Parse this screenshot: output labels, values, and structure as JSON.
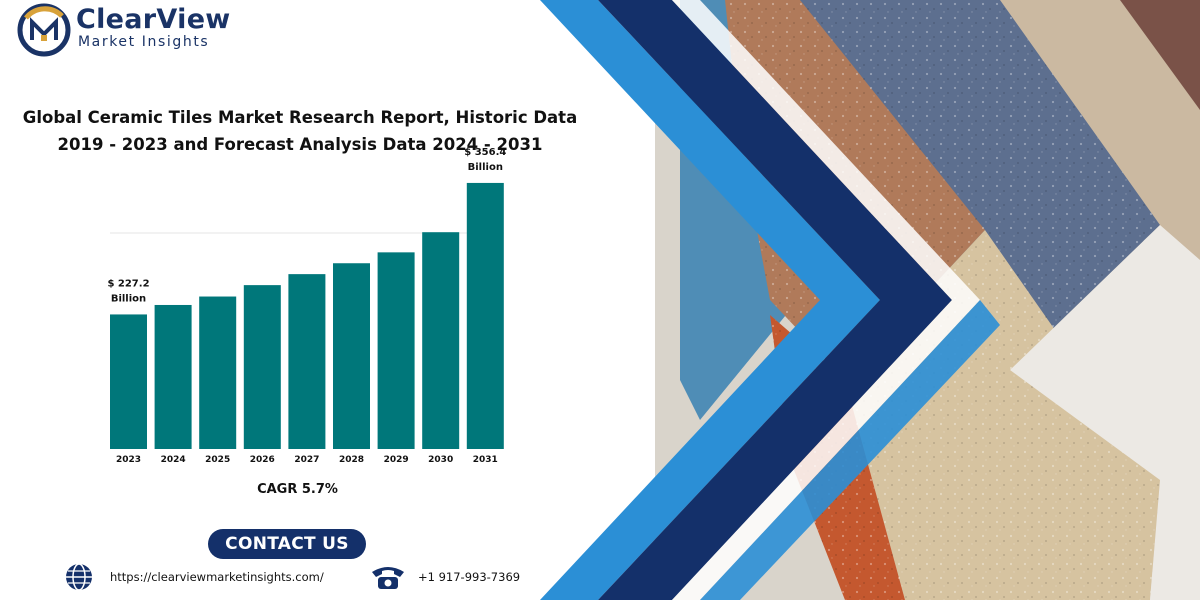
{
  "brand": {
    "name": "ClearView",
    "tagline": "Market Insights"
  },
  "report_title": "Global Ceramic Tiles Market Research Report, Historic Data 2019 - 2023 and Forecast Analysis Data 2024 - 2031",
  "cagr_text": "CAGR 5.7%",
  "contact": {
    "button_label": "CONTACT US",
    "website": "https://clearviewmarketinsights.com/",
    "phone": "+1 917-993-7369"
  },
  "colors": {
    "bar": "#00777a",
    "navy": "#14306a",
    "blue": "#2b8fd6"
  },
  "chart_data": {
    "type": "bar",
    "categories": [
      "2023",
      "2024",
      "2025",
      "2026",
      "2027",
      "2028",
      "2029",
      "2030",
      "2031"
    ],
    "values": [
      227.2,
      236.5,
      244.8,
      256.0,
      266.8,
      277.5,
      288.2,
      308.0,
      356.4
    ],
    "data_labels": [
      {
        "index": 0,
        "lines": [
          "$ 227.2",
          "Billion"
        ]
      },
      {
        "index": 8,
        "lines": [
          "$ 356.4",
          "Billion"
        ]
      }
    ],
    "unit": "Billion",
    "ylim": [
      95,
      375
    ],
    "grid": false,
    "title": "",
    "xlabel": "",
    "ylabel": ""
  }
}
